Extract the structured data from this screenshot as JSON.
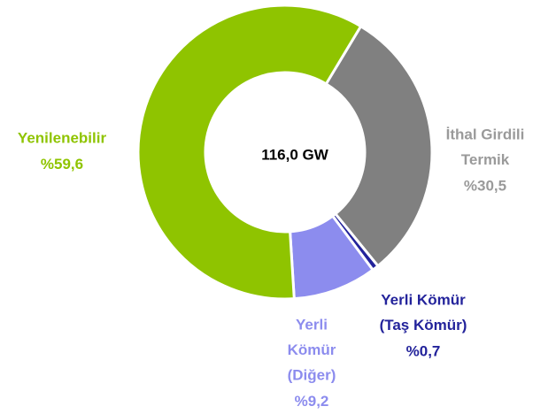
{
  "chart_data": {
    "type": "donut",
    "center_label": "116,0 GW",
    "categories": [
      [
        "İthal Girdili",
        "Termik"
      ],
      [
        "Yerli Kömür",
        "(Taş Kömür)"
      ],
      [
        "Yerli",
        "Kömür",
        "(Diğer)"
      ],
      [
        "Yenilenebilir"
      ]
    ],
    "values": [
      30.5,
      0.7,
      9.2,
      59.6
    ],
    "value_labels": [
      "%30,5",
      "%0,7",
      "%9,2",
      "%59,6"
    ],
    "colors": [
      "#808080",
      "#23239b",
      "#8c8cee",
      "#8fc400"
    ]
  }
}
